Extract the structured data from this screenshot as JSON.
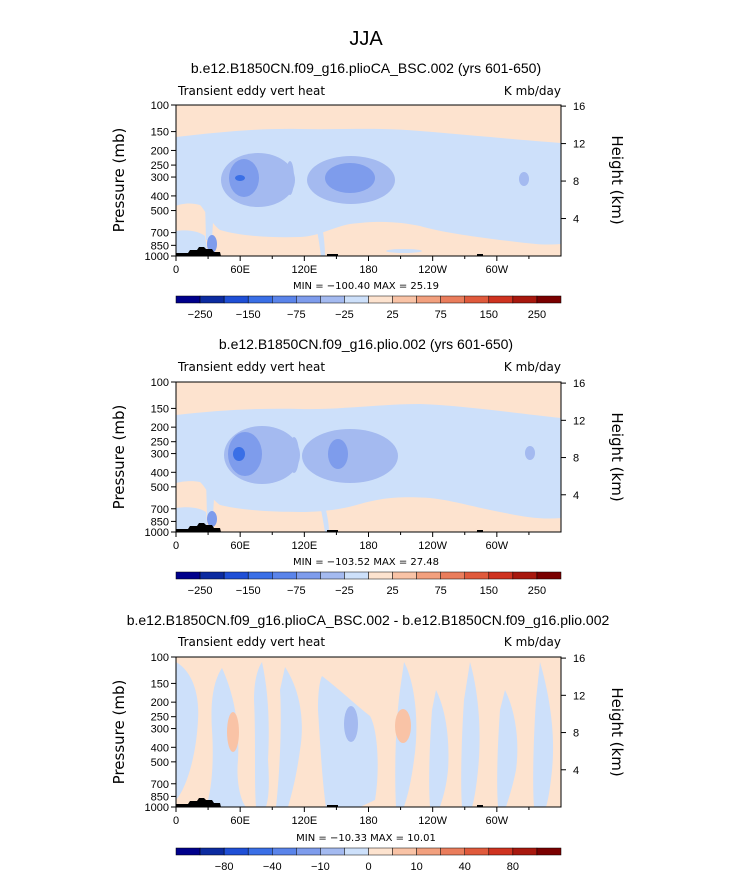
{
  "figure_title": "JJA",
  "chart_data": [
    {
      "type": "heatmap",
      "title": "b.e12.B1850CN.f09_g16.plioCA_BSC.002 (yrs 601-650)",
      "subtitle_left": "Transient eddy vert heat",
      "subtitle_right": "K mb/day",
      "ylabel": "Pressure (mb)",
      "ylabel_right": "Height (km)",
      "pressure_ticks": [
        "100",
        "150",
        "200",
        "250",
        "300",
        "400",
        "500",
        "700",
        "850",
        "1000"
      ],
      "height_ticks": [
        "16",
        "12",
        "8",
        "4"
      ],
      "lon_ticks": [
        "0",
        "60E",
        "120E",
        "180",
        "120W",
        "60W"
      ],
      "min_max": "MIN = −100.40   MAX =  25.19",
      "colorbar_labels": [
        "−250",
        "−150",
        "−75",
        "−25",
        "25",
        "75",
        "150",
        "250"
      ],
      "contour_levels": [
        -300,
        -250,
        -200,
        -150,
        -100,
        -75,
        -50,
        -25,
        0,
        25,
        50,
        75,
        100,
        150,
        200,
        250,
        300
      ],
      "field_min": -100.4,
      "field_max": 25.19
    },
    {
      "type": "heatmap",
      "title": "b.e12.B1850CN.f09_g16.plio.002 (yrs 601-650)",
      "subtitle_left": "Transient eddy vert heat",
      "subtitle_right": "K mb/day",
      "ylabel": "Pressure (mb)",
      "ylabel_right": "Height (km)",
      "pressure_ticks": [
        "100",
        "150",
        "200",
        "250",
        "300",
        "400",
        "500",
        "700",
        "850",
        "1000"
      ],
      "height_ticks": [
        "16",
        "12",
        "8",
        "4"
      ],
      "lon_ticks": [
        "0",
        "60E",
        "120E",
        "180",
        "120W",
        "60W"
      ],
      "min_max": "MIN = −103.52   MAX =  27.48",
      "colorbar_labels": [
        "−250",
        "−150",
        "−75",
        "−25",
        "25",
        "75",
        "150",
        "250"
      ],
      "contour_levels": [
        -300,
        -250,
        -200,
        -150,
        -100,
        -75,
        -50,
        -25,
        0,
        25,
        50,
        75,
        100,
        150,
        200,
        250,
        300
      ],
      "field_min": -103.52,
      "field_max": 27.48
    },
    {
      "type": "heatmap",
      "title": "b.e12.B1850CN.f09_g16.plioCA_BSC.002 - b.e12.B1850CN.f09_g16.plio.002",
      "subtitle_left": "Transient eddy vert heat",
      "subtitle_right": "K mb/day",
      "ylabel": "Pressure (mb)",
      "ylabel_right": "Height (km)",
      "pressure_ticks": [
        "100",
        "150",
        "200",
        "250",
        "300",
        "400",
        "500",
        "700",
        "850",
        "1000"
      ],
      "height_ticks": [
        "16",
        "12",
        "8",
        "4"
      ],
      "lon_ticks": [
        "0",
        "60E",
        "120E",
        "180",
        "120W",
        "60W"
      ],
      "min_max": "MIN = −10.33   MAX =  10.01",
      "colorbar_labels": [
        "−80",
        "−40",
        "−10",
        "0",
        "10",
        "40",
        "80"
      ],
      "contour_levels": [
        -100,
        -80,
        -60,
        -40,
        -20,
        -10,
        -5,
        0,
        5,
        10,
        20,
        40,
        60,
        80,
        100
      ],
      "field_min": -10.33,
      "field_max": 10.01
    }
  ],
  "palette": [
    "#00008b",
    "#0c2ba0",
    "#1f4fd6",
    "#3a6fe6",
    "#5a84ea",
    "#7e9cec",
    "#a4baf0",
    "#cde0fa",
    "#fde3cf",
    "#f9c3a6",
    "#f2a07e",
    "#ea7d5c",
    "#e05a3c",
    "#cf3320",
    "#a8180e",
    "#7a0000"
  ],
  "topography_color": "#000000"
}
